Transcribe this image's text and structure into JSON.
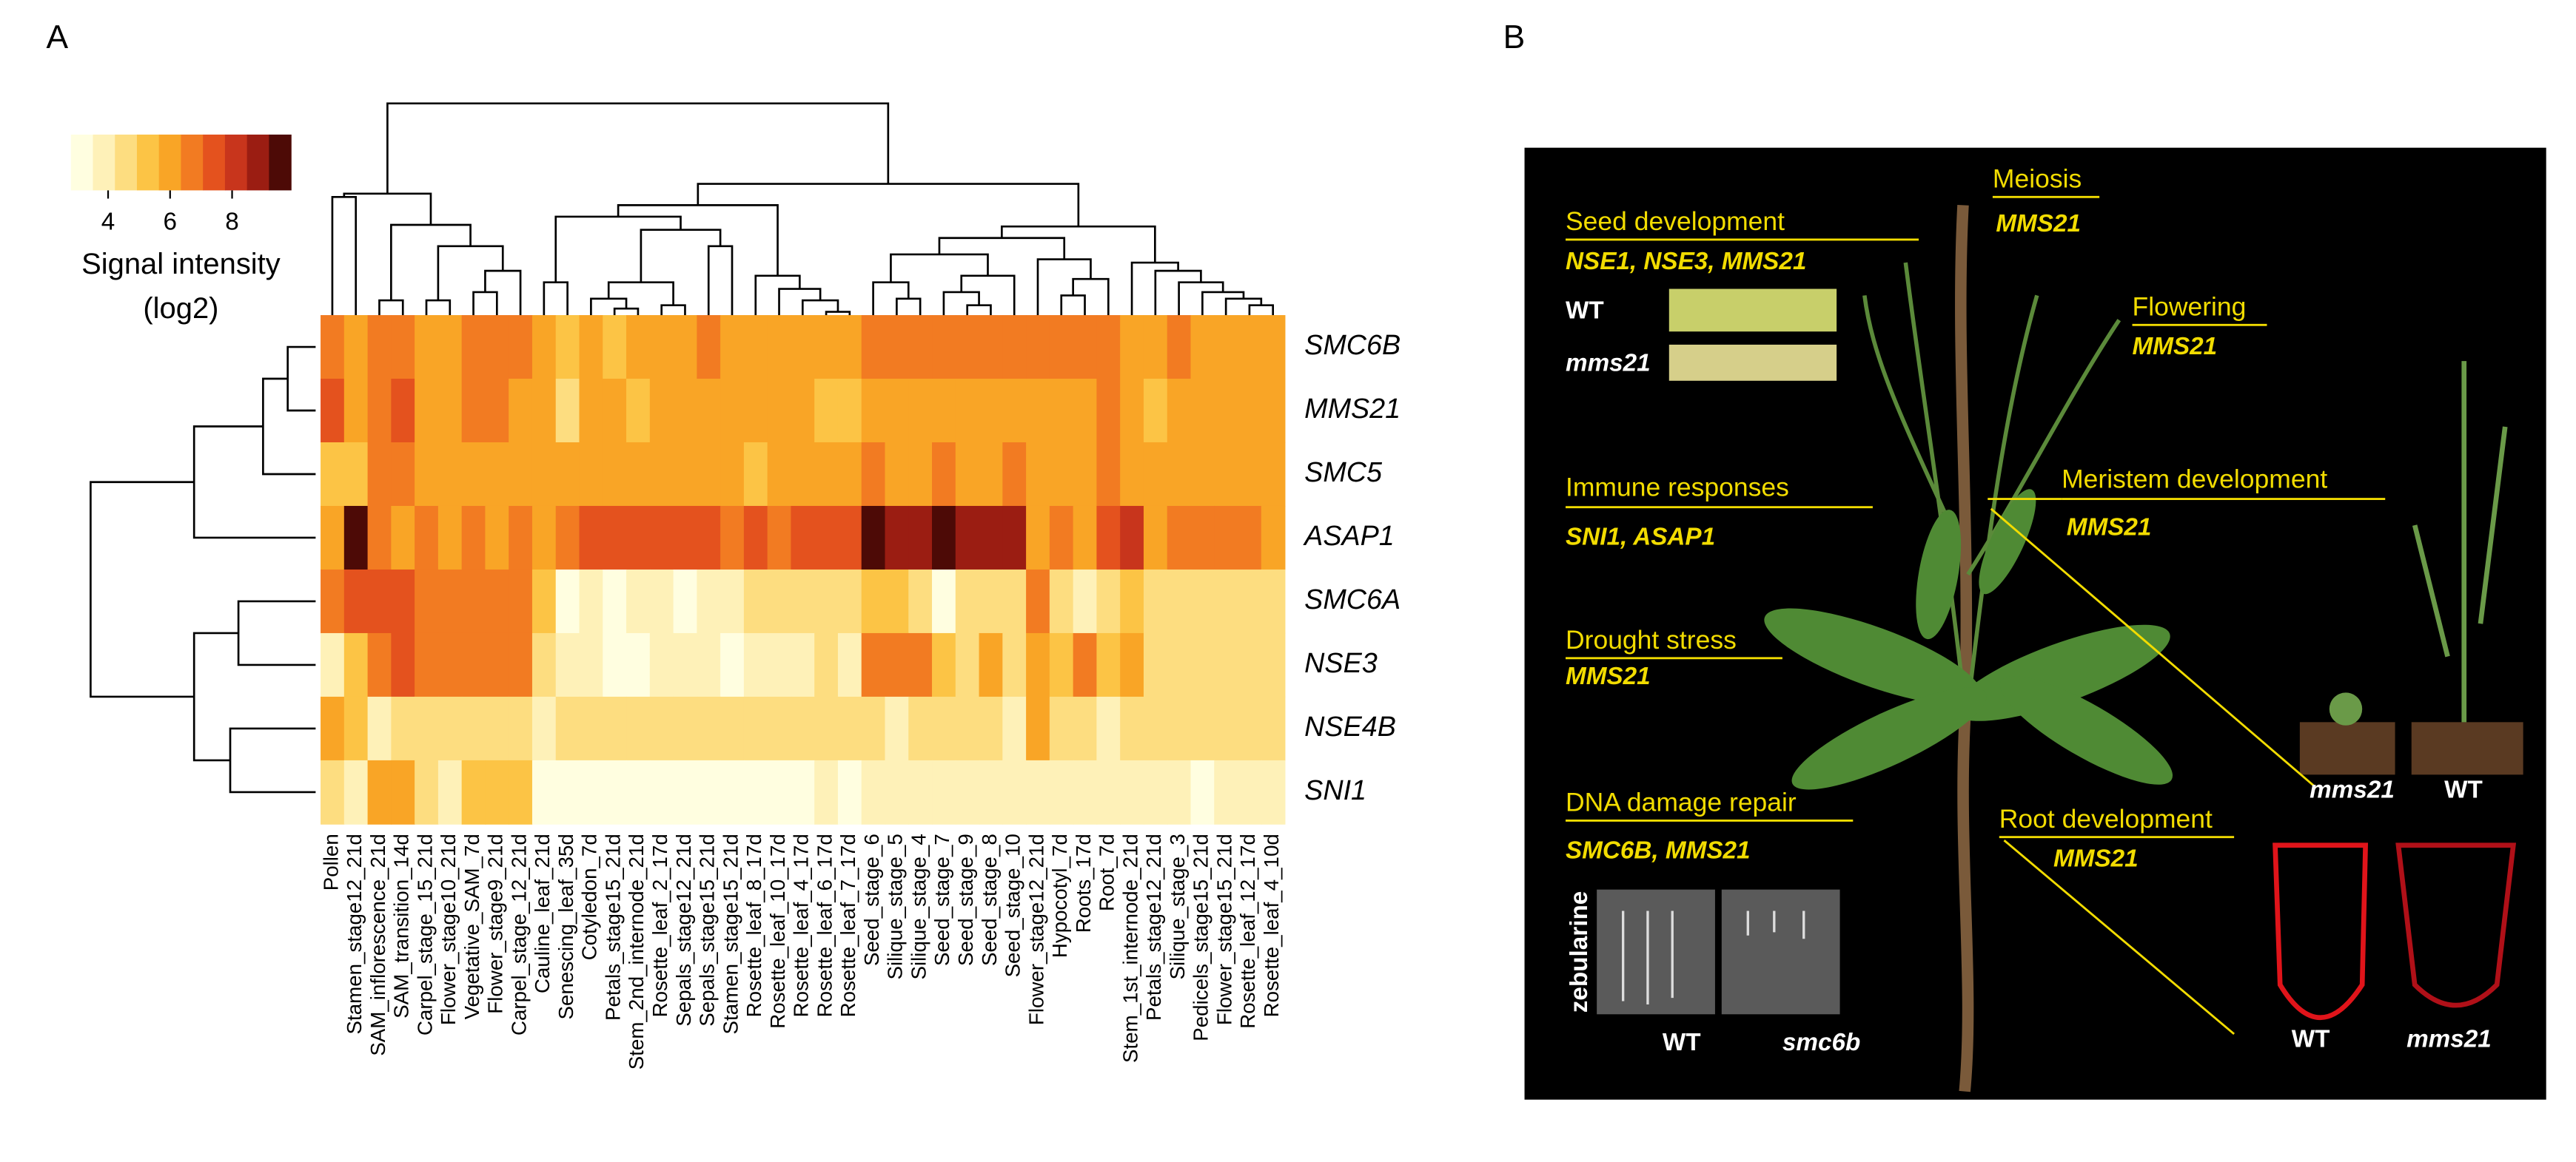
{
  "panel_labels": [
    "A",
    "B"
  ],
  "chart_data": {
    "type": "heatmap",
    "colorbar_label": [
      "Signal intensity",
      "(log2)"
    ],
    "clim": [
      2.8,
      9.9
    ],
    "cticks": [
      4,
      6,
      8
    ],
    "colors": [
      "#FFFEE0",
      "#FEF1B8",
      "#FDDD80",
      "#FCC445",
      "#F9A526",
      "#F27B22",
      "#E4521E",
      "#C8351C",
      "#9B1D12",
      "#4D0A06"
    ],
    "rows": [
      "SMC6B",
      "MMS21",
      "SMC5",
      "ASAP1",
      "SMC6A",
      "NSE3",
      "NSE4B",
      "SNI1"
    ],
    "columns": [
      "Pollen",
      "Stamen_stage12_21d",
      "SAM_inflorescence_21d",
      "SAM_transition_14d",
      "Carpel_stage_15_21d",
      "Flower_stage10_21d",
      "Vegetative_SAM_7d",
      "Flower_stage9_21d",
      "Carpel_stage_12_21d",
      "Cauline_leaf_21d",
      "Senescing_leaf_35d",
      "Cotyledon_7d",
      "Petals_stage15_21d",
      "Stem_2nd_internode_21d",
      "Rosette_leaf_2_17d",
      "Sepals_stage12_21d",
      "Sepals_stage15_21d",
      "Stamen_stage15_21d",
      "Rosette_leaf_8_17d",
      "Rosette_leaf_10_17d",
      "Rosette_leaf_4_17d",
      "Rosette_leaf_6_17d",
      "Rosette_leaf_7_17d",
      "Seed_stage_6",
      "Silique_stage_5",
      "Silique_stage_4",
      "Seed_stage_7",
      "Seed_stage_9",
      "Seed_stage_8",
      "Seed_stage_10",
      "Flower_stage12_21d",
      "Hypocotyl_7d",
      "Roots_17d",
      "Root_7d",
      "Stem_1st_internode_21d",
      "Petals_stage12_21d",
      "Silique_stage_3",
      "Pedicels_stage15_21d",
      "Flower_stage15_21d",
      "Rosette_leaf_12_17d",
      "Rosette_leaf_4_10d"
    ],
    "values": [
      [
        6.7,
        6.0,
        6.7,
        6.7,
        6.0,
        6.0,
        6.7,
        6.7,
        6.7,
        6.0,
        5.3,
        6.0,
        5.3,
        6.0,
        6.0,
        6.0,
        6.7,
        6.0,
        6.0,
        6.0,
        6.0,
        6.0,
        6.0,
        6.7,
        6.7,
        6.7,
        6.7,
        6.7,
        6.7,
        6.7,
        6.7,
        6.7,
        6.7,
        6.7,
        6.0,
        6.0,
        6.7,
        6.0,
        6.0,
        6.0,
        6.0
      ],
      [
        7.4,
        6.0,
        6.7,
        7.4,
        6.0,
        6.0,
        6.7,
        6.7,
        6.0,
        6.0,
        4.7,
        6.0,
        6.0,
        5.3,
        6.0,
        6.0,
        6.0,
        6.0,
        6.0,
        6.0,
        6.0,
        5.3,
        5.3,
        6.0,
        6.0,
        6.0,
        6.0,
        6.0,
        6.0,
        6.0,
        6.0,
        6.0,
        6.0,
        6.7,
        6.0,
        5.3,
        6.0,
        6.0,
        6.0,
        6.0,
        6.0
      ],
      [
        5.3,
        5.3,
        6.7,
        6.7,
        6.0,
        6.0,
        6.0,
        6.0,
        6.0,
        6.0,
        6.0,
        6.0,
        6.0,
        6.0,
        6.0,
        6.0,
        6.0,
        6.0,
        5.3,
        6.0,
        6.0,
        6.0,
        6.0,
        6.7,
        6.0,
        6.0,
        6.7,
        6.0,
        6.0,
        6.7,
        6.0,
        6.0,
        6.0,
        6.7,
        6.0,
        6.0,
        6.0,
        6.0,
        6.0,
        6.0,
        6.0
      ],
      [
        6.0,
        9.5,
        6.7,
        6.0,
        6.7,
        6.0,
        6.7,
        6.0,
        6.7,
        6.0,
        6.7,
        7.4,
        7.4,
        7.4,
        7.4,
        7.4,
        7.4,
        6.7,
        7.4,
        6.7,
        7.4,
        7.4,
        7.4,
        9.5,
        8.8,
        8.8,
        9.5,
        8.8,
        8.8,
        8.8,
        6.0,
        6.7,
        6.0,
        7.4,
        8.1,
        6.0,
        6.7,
        6.7,
        6.7,
        6.7,
        6.0
      ],
      [
        6.7,
        7.4,
        7.4,
        7.4,
        6.7,
        6.7,
        6.7,
        6.7,
        6.7,
        5.3,
        3.2,
        3.9,
        3.2,
        3.9,
        3.9,
        3.2,
        3.9,
        3.9,
        4.7,
        4.7,
        4.7,
        4.7,
        4.7,
        5.3,
        5.3,
        4.7,
        3.2,
        4.7,
        4.7,
        4.7,
        6.7,
        4.7,
        3.9,
        4.7,
        5.3,
        4.7,
        4.7,
        4.7,
        4.7,
        4.7,
        4.7
      ],
      [
        3.9,
        5.3,
        6.7,
        7.4,
        6.7,
        6.7,
        6.7,
        6.7,
        6.7,
        4.7,
        3.9,
        3.9,
        3.2,
        3.2,
        3.9,
        3.9,
        3.9,
        3.2,
        3.9,
        3.9,
        3.9,
        4.7,
        3.9,
        6.7,
        6.7,
        6.7,
        5.3,
        4.7,
        6.0,
        4.7,
        6.0,
        5.3,
        6.7,
        5.3,
        6.0,
        4.7,
        4.7,
        4.7,
        4.7,
        4.7,
        4.7
      ],
      [
        6.0,
        5.3,
        3.9,
        4.7,
        4.7,
        4.7,
        4.7,
        4.7,
        4.7,
        3.9,
        4.7,
        4.7,
        4.7,
        4.7,
        4.7,
        4.7,
        4.7,
        4.7,
        4.7,
        4.7,
        4.7,
        4.7,
        4.7,
        4.7,
        3.9,
        4.7,
        4.7,
        4.7,
        4.7,
        3.9,
        6.0,
        4.7,
        4.7,
        3.9,
        4.7,
        4.7,
        4.7,
        4.7,
        4.7,
        4.7,
        4.7
      ],
      [
        4.7,
        3.9,
        6.0,
        6.0,
        4.7,
        3.9,
        5.3,
        5.3,
        5.3,
        3.2,
        3.2,
        3.2,
        3.2,
        3.2,
        3.2,
        3.2,
        3.2,
        3.2,
        3.2,
        3.2,
        3.2,
        3.9,
        3.2,
        3.9,
        3.9,
        3.9,
        3.9,
        3.9,
        3.9,
        3.9,
        3.9,
        3.9,
        3.9,
        3.9,
        3.9,
        3.9,
        3.9,
        3.2,
        3.9,
        3.9,
        3.9
      ]
    ]
  },
  "panel_b": {
    "labels": [
      "Seed development",
      "NSE1, NSE3, MMS21",
      "WT",
      "mms21",
      "Meiosis",
      "MMS21",
      "Flowering",
      "MMS21",
      "Immune responses",
      "SNI1, ASAP1",
      "Meristem development",
      "MMS21",
      "Drought stress",
      "MMS21",
      "DNA damage repair",
      "SMC6B, MMS21",
      "zebularine",
      "WT",
      "smc6b",
      "Root development",
      "MMS21",
      "mms21",
      "WT",
      "WT",
      "mms21"
    ]
  }
}
